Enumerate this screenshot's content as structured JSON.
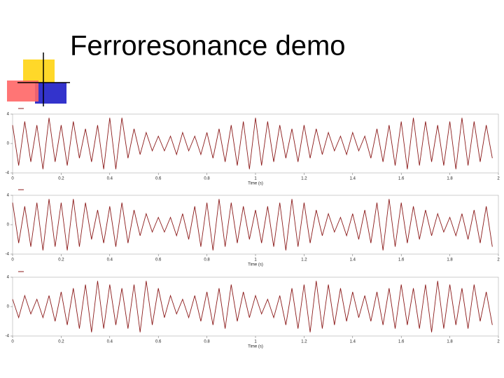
{
  "slide": {
    "title": "Ferroresonance demo"
  },
  "chart_data": [
    {
      "type": "line",
      "xlabel": "Time (s)",
      "xlim": [
        0,
        2
      ],
      "xticks": [
        0,
        0.2,
        0.4,
        0.6,
        0.8,
        1,
        1.2,
        1.4,
        1.6,
        1.8,
        2
      ],
      "ylim": [
        -4,
        4
      ],
      "yticks": [
        -4,
        0,
        4
      ],
      "x": [
        0,
        0.025,
        0.05,
        0.075,
        0.1,
        0.125,
        0.15,
        0.175,
        0.2,
        0.225,
        0.25,
        0.275,
        0.3,
        0.325,
        0.35,
        0.375,
        0.4,
        0.425,
        0.45,
        0.475,
        0.5,
        0.525,
        0.55,
        0.575,
        0.6,
        0.625,
        0.65,
        0.675,
        0.7,
        0.725,
        0.75,
        0.775,
        0.8,
        0.825,
        0.85,
        0.875,
        0.9,
        0.925,
        0.95,
        0.975,
        1,
        1.025,
        1.05,
        1.075,
        1.1,
        1.125,
        1.15,
        1.175,
        1.2,
        1.225,
        1.25,
        1.275,
        1.3,
        1.325,
        1.35,
        1.375,
        1.4,
        1.425,
        1.45,
        1.475,
        1.5,
        1.525,
        1.55,
        1.575,
        1.6,
        1.625,
        1.65,
        1.675,
        1.7,
        1.725,
        1.75,
        1.775,
        1.8,
        1.825,
        1.85,
        1.875,
        1.9,
        1.925,
        1.95,
        1.975
      ],
      "series": [
        {
          "color": "#8b1a1a",
          "values": [
            2.5,
            -3,
            3,
            -2.5,
            2.5,
            -3.5,
            3.5,
            -2.5,
            2.5,
            -3,
            3,
            -2,
            2,
            -2.5,
            2.5,
            -3.5,
            3.5,
            -3.5,
            3.5,
            -2,
            2,
            -1.5,
            1.5,
            -1,
            1,
            -1,
            1,
            -1.5,
            1.5,
            -1,
            1,
            -1.5,
            1.5,
            -2,
            2,
            -2.5,
            2.5,
            -3,
            3,
            -3.5,
            3.5,
            -3,
            3,
            -2.5,
            2.5,
            -2,
            2,
            -2.5,
            2.5,
            -2,
            2,
            -1.5,
            1.5,
            -1,
            1,
            -1.5,
            1.5,
            -1,
            1,
            -2,
            2,
            -2.5,
            2.5,
            -3,
            3,
            -3.5,
            3.5,
            -3,
            3,
            -2.5,
            2.5,
            -3,
            3,
            -3.5,
            3.5,
            -3,
            3,
            -2.5,
            2.5,
            -2
          ]
        }
      ]
    },
    {
      "type": "line",
      "xlabel": "Time (s)",
      "xlim": [
        0,
        2
      ],
      "xticks": [
        0,
        0.2,
        0.4,
        0.6,
        0.8,
        1,
        1.2,
        1.4,
        1.6,
        1.8,
        2
      ],
      "ylim": [
        -4,
        4
      ],
      "yticks": [
        -4,
        0,
        4
      ],
      "x": [
        0,
        0.025,
        0.05,
        0.075,
        0.1,
        0.125,
        0.15,
        0.175,
        0.2,
        0.225,
        0.25,
        0.275,
        0.3,
        0.325,
        0.35,
        0.375,
        0.4,
        0.425,
        0.45,
        0.475,
        0.5,
        0.525,
        0.55,
        0.575,
        0.6,
        0.625,
        0.65,
        0.675,
        0.7,
        0.725,
        0.75,
        0.775,
        0.8,
        0.825,
        0.85,
        0.875,
        0.9,
        0.925,
        0.95,
        0.975,
        1,
        1.025,
        1.05,
        1.075,
        1.1,
        1.125,
        1.15,
        1.175,
        1.2,
        1.225,
        1.25,
        1.275,
        1.3,
        1.325,
        1.35,
        1.375,
        1.4,
        1.425,
        1.45,
        1.475,
        1.5,
        1.525,
        1.55,
        1.575,
        1.6,
        1.625,
        1.65,
        1.675,
        1.7,
        1.725,
        1.75,
        1.775,
        1.8,
        1.825,
        1.85,
        1.875,
        1.9,
        1.925,
        1.95,
        1.975
      ],
      "series": [
        {
          "color": "#8b1a1a",
          "values": [
            3,
            -2.5,
            2.5,
            -3,
            3,
            -3.5,
            3.5,
            -3,
            3,
            -3.5,
            3.5,
            -3,
            3,
            -2,
            2,
            -2.5,
            2.5,
            -3,
            3,
            -2.5,
            2,
            -1.5,
            1.5,
            -1,
            1,
            -1,
            1,
            -1.5,
            1.5,
            -2,
            2.5,
            -3,
            3,
            -3.5,
            3.5,
            -3,
            3,
            -2.5,
            2.5,
            -2,
            2,
            -2.5,
            2.5,
            -3,
            3,
            -3.5,
            3.5,
            -3,
            3,
            -2.5,
            2,
            -1.5,
            1.5,
            -1,
            1,
            -1.5,
            1.5,
            -2,
            2,
            -2.5,
            3,
            -3.5,
            3.5,
            -3,
            3,
            -2.5,
            2.5,
            -2,
            2,
            -1.5,
            1.5,
            -1,
            1,
            -1.5,
            1.5,
            -2,
            2,
            -2.5,
            2.5,
            -3
          ]
        }
      ]
    },
    {
      "type": "line",
      "xlabel": "Time (s)",
      "xlim": [
        0,
        2
      ],
      "xticks": [
        0,
        0.2,
        0.4,
        0.6,
        0.8,
        1,
        1.2,
        1.4,
        1.6,
        1.8,
        2
      ],
      "ylim": [
        -4,
        4
      ],
      "yticks": [
        -4,
        0,
        4
      ],
      "x": [
        0,
        0.025,
        0.05,
        0.075,
        0.1,
        0.125,
        0.15,
        0.175,
        0.2,
        0.225,
        0.25,
        0.275,
        0.3,
        0.325,
        0.35,
        0.375,
        0.4,
        0.425,
        0.45,
        0.475,
        0.5,
        0.525,
        0.55,
        0.575,
        0.6,
        0.625,
        0.65,
        0.675,
        0.7,
        0.725,
        0.75,
        0.775,
        0.8,
        0.825,
        0.85,
        0.875,
        0.9,
        0.925,
        0.95,
        0.975,
        1,
        1.025,
        1.05,
        1.075,
        1.1,
        1.125,
        1.15,
        1.175,
        1.2,
        1.225,
        1.25,
        1.275,
        1.3,
        1.325,
        1.35,
        1.375,
        1.4,
        1.425,
        1.45,
        1.475,
        1.5,
        1.525,
        1.55,
        1.575,
        1.6,
        1.625,
        1.65,
        1.675,
        1.7,
        1.725,
        1.75,
        1.775,
        1.8,
        1.825,
        1.85,
        1.875,
        1.9,
        1.925,
        1.95,
        1.975
      ],
      "series": [
        {
          "color": "#8b1a1a",
          "values": [
            1,
            -1.5,
            1.5,
            -1,
            1,
            -1.5,
            1.5,
            -2,
            2,
            -2.5,
            2.5,
            -3,
            3,
            -3.5,
            3.5,
            -3,
            3,
            -2.5,
            2.5,
            -3,
            3,
            -3.5,
            3.5,
            -2.5,
            2.5,
            -1.5,
            1.5,
            -1,
            1,
            -1.5,
            1.5,
            -2,
            2,
            -2.5,
            2.5,
            -3,
            3,
            -2,
            2,
            -1.5,
            1.5,
            -1,
            1,
            -1.5,
            1.5,
            -2.5,
            2.5,
            -3,
            3,
            -3.5,
            3.5,
            -3,
            3,
            -2.5,
            2.5,
            -2,
            2,
            -1.5,
            1.5,
            -2,
            2,
            -2.5,
            2.5,
            -3,
            3,
            -2.5,
            2.5,
            -3,
            3,
            -3.5,
            3.5,
            -3,
            3,
            -2.5,
            2.5,
            -3,
            3,
            -2,
            2,
            -2.5
          ]
        }
      ]
    }
  ]
}
